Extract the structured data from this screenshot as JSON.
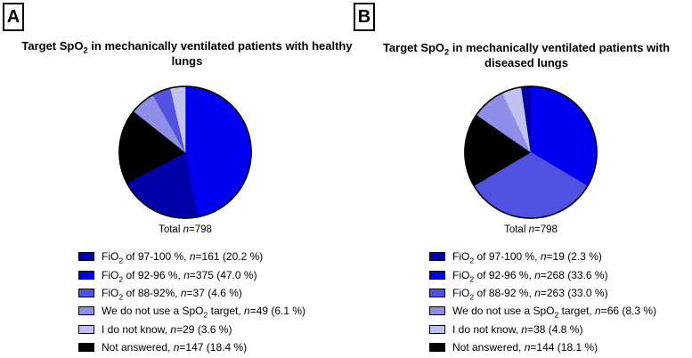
{
  "panels": [
    {
      "label": "A",
      "title": {
        "pre": "Target SpO",
        "sub": "2",
        "post": " in mechanically ventilated patients with healthy lungs"
      },
      "total": {
        "pre": "Total ",
        "n": "n",
        "post": "=798"
      },
      "legend": [
        {
          "pre": "FiO",
          "sub": "2",
          "mid": " of 97-100 %, ",
          "n": "n",
          "post": "=161 (20.2 %)"
        },
        {
          "pre": "FiO",
          "sub": "2",
          "mid": " of 92-96 %, ",
          "n": "n",
          "post": "=375 (47.0 %)"
        },
        {
          "pre": "FiO",
          "sub": "2",
          "mid": " of 88-92%, ",
          "n": "n",
          "post": "=37 (4.6 %)"
        },
        {
          "pre": "We do not use a SpO",
          "sub": "2",
          "mid": " target, ",
          "n": "n",
          "post": "=49 (6.1 %)"
        },
        {
          "pre": "I do not know, ",
          "sub": "",
          "mid": "",
          "n": "n",
          "post": "=29 (3.6 %)"
        },
        {
          "pre": "Not answered, ",
          "sub": "",
          "mid": "",
          "n": "n",
          "post": "=147 (18.4 %)"
        }
      ]
    },
    {
      "label": "B",
      "title": {
        "pre": "Target SpO",
        "sub": "2",
        "post": " in mechanically ventilated patients with diseased lungs"
      },
      "total": {
        "pre": "Total ",
        "n": "n",
        "post": "=798"
      },
      "legend": [
        {
          "pre": "FiO",
          "sub": "2",
          "mid": " of 97-100 %, ",
          "n": "n",
          "post": "=19 (2.3 %)"
        },
        {
          "pre": "FiO",
          "sub": "2",
          "mid": " of 92-96 %, ",
          "n": "n",
          "post": "=268 (33.6 %)"
        },
        {
          "pre": "FiO",
          "sub": "2",
          "mid": " of 88-92 %, ",
          "n": "n",
          "post": "=263 (33.0 %)"
        },
        {
          "pre": "We do not use a SpO",
          "sub": "2",
          "mid": " target, ",
          "n": "n",
          "post": "=66 (8.3 %)"
        },
        {
          "pre": "I do not know, ",
          "sub": "",
          "mid": "",
          "n": "n",
          "post": "=38 (4.8 %)"
        },
        {
          "pre": "Not answered, ",
          "sub": "",
          "mid": "",
          "n": "n",
          "post": "=144 (18.1 %)"
        }
      ]
    }
  ],
  "chart_data": [
    {
      "type": "pie",
      "title": "Target SpO2 in mechanically ventilated patients with healthy lungs",
      "total_label": "Total n=798",
      "total_n": 798,
      "categories": [
        "FiO2 of 97-100 %",
        "FiO2 of 92-96 %",
        "FiO2 of 88-92%",
        "We do not use a SpO2 target",
        "I do not know",
        "Not answered"
      ],
      "counts": [
        161,
        375,
        37,
        49,
        29,
        147
      ],
      "percents": [
        20.2,
        47.0,
        4.6,
        6.1,
        3.6,
        18.4
      ],
      "colors": [
        "#0000A8",
        "#0000F0",
        "#5252E2",
        "#8F8FE9",
        "#C2C2F0",
        "#000000"
      ],
      "start_angle_deg": 0,
      "direction": "clockwise",
      "slice_order": "descending-from-top",
      "legend_position": "bottom-left"
    },
    {
      "type": "pie",
      "title": "Target SpO2 in mechanically ventilated patients with diseased lungs",
      "total_label": "Total n=798",
      "total_n": 798,
      "categories": [
        "FiO2 of 97-100 %",
        "FiO2 of 92-96 %",
        "FiO2 of 88-92 %",
        "We do not use a SpO2 target",
        "I do not know",
        "Not answered"
      ],
      "counts": [
        19,
        268,
        263,
        66,
        38,
        144
      ],
      "percents": [
        2.3,
        33.6,
        33.0,
        8.3,
        4.8,
        18.1
      ],
      "colors": [
        "#0000A8",
        "#0000F0",
        "#5252E2",
        "#8F8FE9",
        "#C2C2F0",
        "#000000"
      ],
      "start_angle_deg": 0,
      "direction": "clockwise",
      "slice_order": "descending-from-top",
      "legend_position": "bottom-left"
    }
  ]
}
